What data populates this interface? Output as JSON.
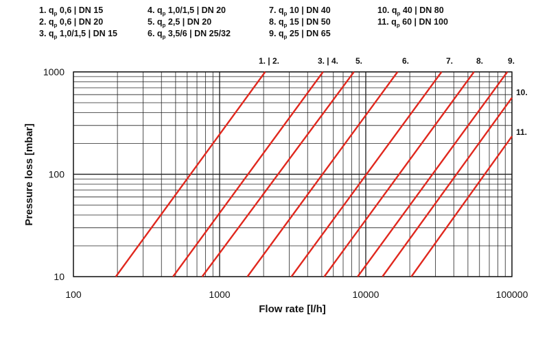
{
  "legend": [
    {
      "num": "1.",
      "q": "q",
      "sub": "p",
      "text": " 0,6 | DN 15"
    },
    {
      "num": "2.",
      "q": "q",
      "sub": "p",
      "text": " 0,6 | DN 20"
    },
    {
      "num": "3.",
      "q": "q",
      "sub": "p",
      "text": " 1,0/1,5 | DN 15"
    },
    {
      "num": "4.",
      "q": "q",
      "sub": "p",
      "text": " 1,0/1,5 | DN 20"
    },
    {
      "num": "5.",
      "q": "q",
      "sub": "p",
      "text": " 2,5 | DN 20"
    },
    {
      "num": "6.",
      "q": "q",
      "sub": "p",
      "text": " 3,5/6 | DN 25/32"
    },
    {
      "num": "7.",
      "q": "q",
      "sub": "p",
      "text": " 10 | DN 40"
    },
    {
      "num": "8.",
      "q": "q",
      "sub": "p",
      "text": " 15 | DN 50"
    },
    {
      "num": "9.",
      "q": "q",
      "sub": "p",
      "text": " 25 | DN 65"
    },
    {
      "num": "10.",
      "q": "q",
      "sub": "p",
      "text": " 40 | DN 80"
    },
    {
      "num": "11.",
      "q": "q",
      "sub": "p",
      "text": " 60 | DN 100"
    }
  ],
  "chart_data": {
    "type": "line",
    "title": "",
    "xlabel": "Flow rate [l/h]",
    "ylabel": "Pressure loss [mbar]",
    "xscale": "log",
    "yscale": "log",
    "xlim": [
      100,
      100000
    ],
    "ylim": [
      10,
      1000
    ],
    "x_tick_labels": [
      "100",
      "1000",
      "10000",
      "100000"
    ],
    "y_tick_labels": [
      "10",
      "100",
      "1000"
    ],
    "grid": true,
    "line_color": "#e0281e",
    "top_labels": [
      "1. | 2.",
      "3. | 4.",
      "5.",
      "6.",
      "7.",
      "8.",
      "9."
    ],
    "side_labels": [
      "10.",
      "11."
    ],
    "series": [
      {
        "name": "1. | 2.",
        "x": [
          195,
          2050
        ],
        "y": [
          10,
          1000
        ]
      },
      {
        "name": "3. | 4.",
        "x": [
          480,
          5100
        ],
        "y": [
          10,
          1000
        ]
      },
      {
        "name": "5.",
        "x": [
          760,
          8300
        ],
        "y": [
          10,
          1000
        ]
      },
      {
        "name": "6.",
        "x": [
          1550,
          16500
        ],
        "y": [
          10,
          1000
        ]
      },
      {
        "name": "7.",
        "x": [
          3100,
          33000
        ],
        "y": [
          10,
          1000
        ]
      },
      {
        "name": "8.",
        "x": [
          5200,
          55000
        ],
        "y": [
          10,
          1000
        ]
      },
      {
        "name": "9.",
        "x": [
          8800,
          93000
        ],
        "y": [
          10,
          1000
        ]
      },
      {
        "name": "10.",
        "x": [
          13000,
          100000
        ],
        "y": [
          10,
          560
        ]
      },
      {
        "name": "11.",
        "x": [
          20500,
          100000
        ],
        "y": [
          10,
          235
        ]
      }
    ]
  }
}
